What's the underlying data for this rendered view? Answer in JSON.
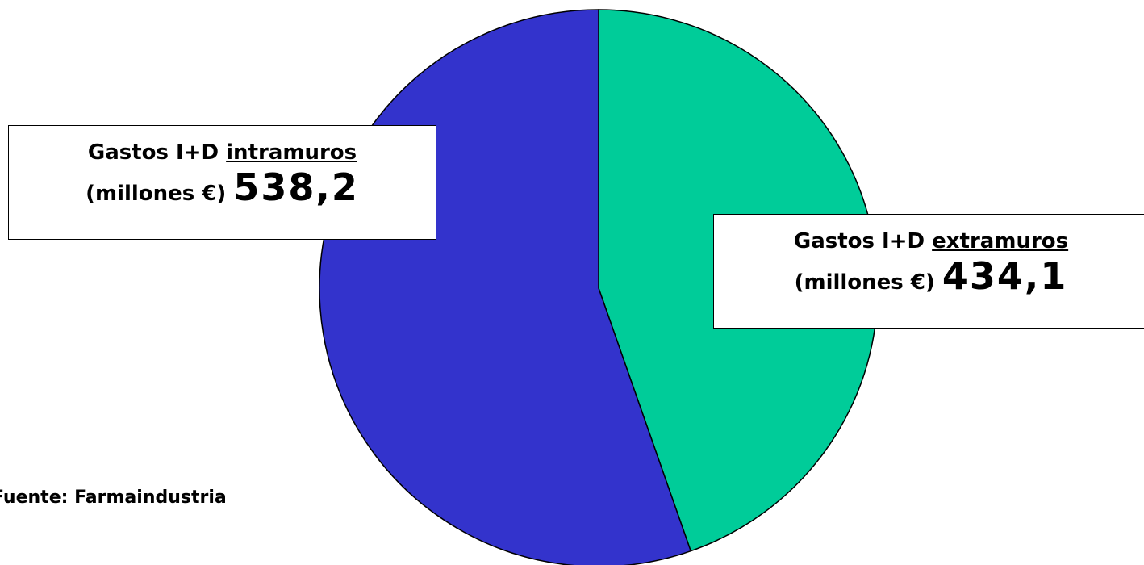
{
  "chart_data": {
    "type": "pie",
    "slices": [
      {
        "name": "Gastos I+D extramuros",
        "value": 434.1,
        "color": "#00CC99"
      },
      {
        "name": "Gastos I+D intramuros",
        "value": 538.2,
        "color": "#3333CC"
      }
    ],
    "title": "",
    "start_angle_deg": 0,
    "direction": "clockwise"
  },
  "labels": {
    "intramuros": {
      "prefix": "Gastos I+D ",
      "keyword": "intramuros",
      "unit": "(millones €) ",
      "value": "538,2"
    },
    "extramuros": {
      "prefix": "Gastos I+D ",
      "keyword": "extramuros",
      "unit": "(millones €) ",
      "value": "434,1"
    }
  },
  "source": "Fuente: Farmaindustria"
}
